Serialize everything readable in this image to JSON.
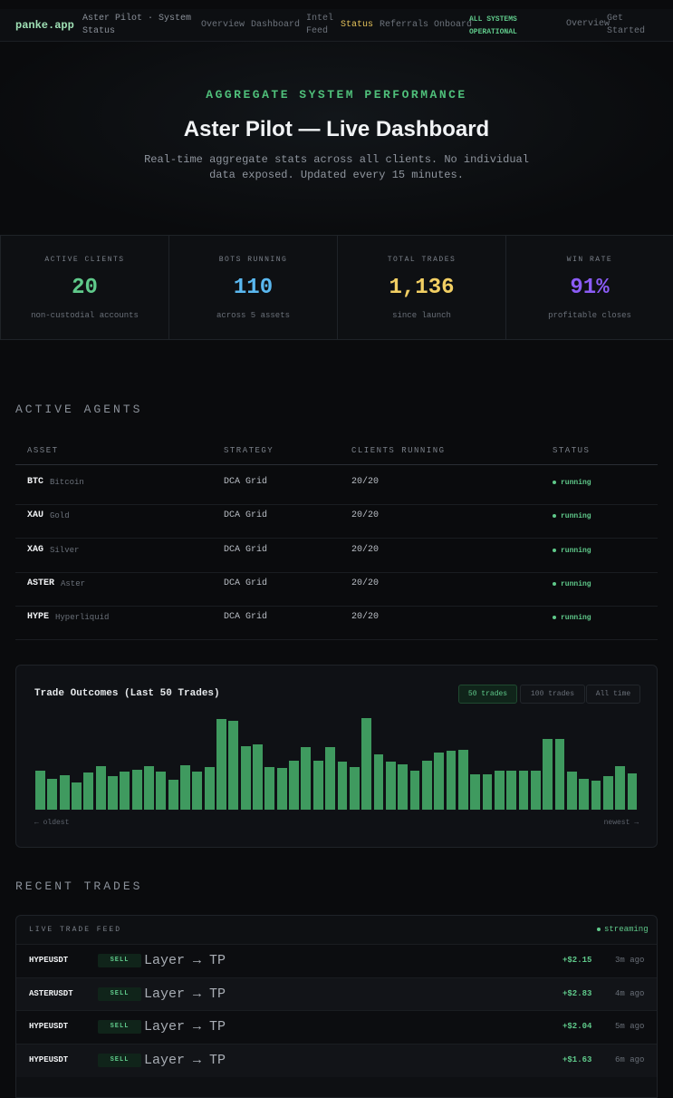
{
  "nav": {
    "brand": "panke.app",
    "crumb": "Aster Pilot · System Status",
    "links": [
      "Overview",
      "Dashboard",
      "Intel Feed",
      "Status",
      "Referrals",
      "Onboard"
    ],
    "badge": "ALL SYSTEMS OPERATIONAL",
    "right_links": [
      "Overview",
      "Get Started"
    ]
  },
  "hero": {
    "eyebrow": "AGGREGATE SYSTEM PERFORMANCE",
    "title": "Aster Pilot — Live Dashboard",
    "subtitle": "Real-time aggregate stats across all clients. No individual data exposed. Updated every 15 minutes."
  },
  "stats": [
    {
      "label": "ACTIVE CLIENTS",
      "value": "20",
      "note": "non-custodial accounts",
      "color": "#5fc98a"
    },
    {
      "label": "BOTS RUNNING",
      "value": "110",
      "note": "across 5 assets",
      "color": "#5ab8f0"
    },
    {
      "label": "TOTAL TRADES",
      "value": "1,136",
      "note": "since launch",
      "color": "#f2cf63"
    },
    {
      "label": "WIN RATE",
      "value": "91%",
      "note": "profitable closes",
      "color": "#8b5cf6"
    }
  ],
  "agents": {
    "title": "ACTIVE AGENTS",
    "headers": [
      "ASSET",
      "STRATEGY",
      "CLIENTS RUNNING",
      "STATUS"
    ],
    "rows": [
      {
        "symbol": "BTC",
        "name": "Bitcoin",
        "strategy": "DCA Grid",
        "clients": "20/20",
        "status": "running"
      },
      {
        "symbol": "XAU",
        "name": "Gold",
        "strategy": "DCA Grid",
        "clients": "20/20",
        "status": "running"
      },
      {
        "symbol": "XAG",
        "name": "Silver",
        "strategy": "DCA Grid",
        "clients": "20/20",
        "status": "running"
      },
      {
        "symbol": "ASTER",
        "name": "Aster",
        "strategy": "DCA Grid",
        "clients": "20/20",
        "status": "running"
      },
      {
        "symbol": "HYPE",
        "name": "Hyperliquid",
        "strategy": "DCA Grid",
        "clients": "20/20",
        "status": "running"
      }
    ]
  },
  "trade_outcomes": {
    "type": "bar",
    "title": "Trade Outcomes (Last 50 Trades)",
    "buttons": [
      "50 trades",
      "100 trades",
      "All time"
    ],
    "color": "#3f9a5f",
    "values": [
      43,
      34,
      38,
      30,
      41,
      48,
      37,
      42,
      44,
      48,
      42,
      33,
      49,
      42,
      47,
      99,
      97,
      69,
      71,
      47,
      46,
      53,
      68,
      53,
      68,
      52,
      47,
      100,
      60,
      52,
      50,
      43,
      53,
      62,
      64,
      65,
      39,
      39,
      43,
      43,
      43,
      43,
      77,
      77,
      42,
      34,
      32,
      37,
      48,
      40
    ],
    "start_label": "← oldest",
    "end_label": "newest →"
  },
  "recent": {
    "title": "RECENT TRADES",
    "feed_label": "LIVE TRADE FEED",
    "streaming": "streaming",
    "rows": [
      {
        "pair": "HYPEUSDT",
        "side": "SELL",
        "action": "Layer → TP",
        "pnl": "+$2.15",
        "time": "3m ago"
      },
      {
        "pair": "ASTERUSDT",
        "side": "SELL",
        "action": "Layer → TP",
        "pnl": "+$2.83",
        "time": "4m ago"
      },
      {
        "pair": "HYPEUSDT",
        "side": "SELL",
        "action": "Layer → TP",
        "pnl": "+$2.04",
        "time": "5m ago"
      },
      {
        "pair": "HYPEUSDT",
        "side": "SELL",
        "action": "Layer → TP",
        "pnl": "+$1.63",
        "time": "6m ago"
      }
    ]
  }
}
